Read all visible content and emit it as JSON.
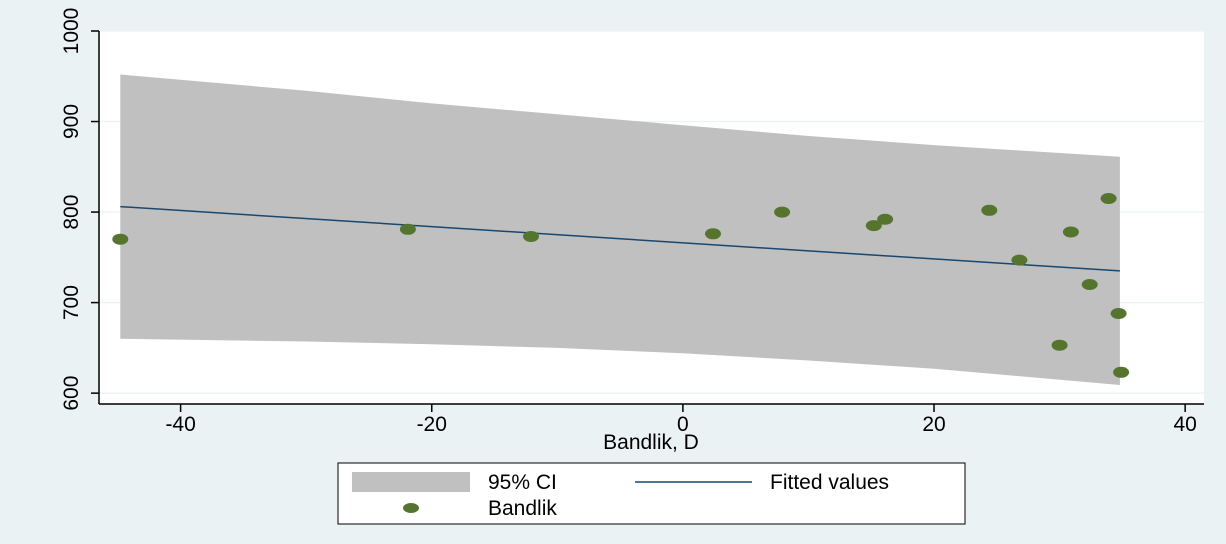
{
  "chart_data": {
    "type": "scatter",
    "xlabel": "Bandlik, D",
    "ylabel": "",
    "xlim": [
      -46.5,
      41.5
    ],
    "ylim": [
      588,
      1000
    ],
    "x_ticks": [
      -40,
      -20,
      0,
      20,
      40
    ],
    "y_ticks": [
      600,
      700,
      800,
      900,
      1000
    ],
    "grid": true,
    "legend_position": "bottom",
    "colors": {
      "outer_background": "#eaf2f3",
      "plot_background": "#ffffff",
      "ci_band": "#c0c0c0",
      "fit_line": "#1a476f",
      "points": "#55752f",
      "grid": "#eaf2f3"
    },
    "series": [
      {
        "name": "95% CI",
        "kind": "band",
        "x": [
          -44.8,
          -30,
          -20,
          -10,
          0,
          10,
          20,
          34.8
        ],
        "upper": [
          952,
          934,
          920,
          908,
          896,
          884,
          874,
          861
        ],
        "lower": [
          660,
          657,
          654,
          650,
          644,
          636,
          627,
          609
        ]
      },
      {
        "name": "Fitted values",
        "kind": "line",
        "x": [
          -44.8,
          34.8
        ],
        "y": [
          806,
          735
        ]
      },
      {
        "name": "Bandlik",
        "kind": "scatter",
        "x": [
          -44.8,
          -21.9,
          -12.1,
          2.4,
          7.9,
          15.2,
          16.1,
          24.4,
          26.8,
          30.0,
          30.9,
          32.4,
          33.9,
          34.7,
          34.9
        ],
        "y": [
          770,
          781,
          773,
          776,
          800,
          785,
          792,
          802,
          747,
          653,
          778,
          720,
          815,
          688,
          623
        ]
      }
    ],
    "legend": {
      "ci_label": "95% CI",
      "fit_label": "Fitted values",
      "points_label": "Bandlik"
    }
  }
}
